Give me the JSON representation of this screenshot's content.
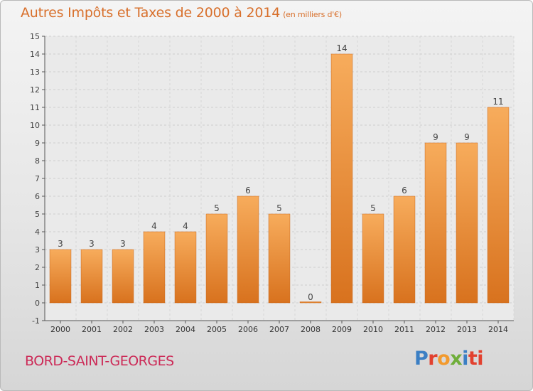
{
  "chart_data": {
    "type": "bar",
    "title": "Autres Impôts et Taxes de 2000 à 2014",
    "subtitle": "(en milliers d'€)",
    "categories": [
      "2000",
      "2001",
      "2002",
      "2003",
      "2004",
      "2005",
      "2006",
      "2007",
      "2008",
      "2009",
      "2010",
      "2011",
      "2012",
      "2013",
      "2014"
    ],
    "values": [
      3,
      3,
      3,
      4,
      4,
      5,
      6,
      5,
      0,
      14,
      5,
      6,
      9,
      9,
      11
    ],
    "ylim": [
      -1,
      15
    ],
    "yticks": [
      -1,
      0,
      1,
      2,
      3,
      4,
      5,
      6,
      7,
      8,
      9,
      10,
      11,
      12,
      13,
      14,
      15
    ],
    "grid": true,
    "bar_color": "#f0923a",
    "bar_color_light": "#f7ac5c",
    "bar_color_dark": "#d8721e"
  },
  "location": "BORD-SAINT-GEORGES",
  "logo": {
    "letters": [
      "P",
      "r",
      "o",
      "x",
      "i",
      "ti"
    ],
    "colors": [
      "#3b7fc4",
      "#e2412f",
      "#f29a2e",
      "#6fae3a",
      "#3b7fc4",
      "#e2412f"
    ]
  }
}
